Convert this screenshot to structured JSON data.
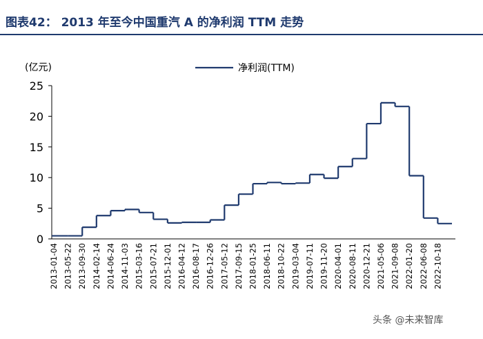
{
  "chart_data": {
    "type": "line",
    "step": true,
    "title": "图表42： 2013 年至今中国重汽 A 的净利润 TTM 走势",
    "y_unit": "(亿元)",
    "watermark": "头条 @未来智库",
    "categories": [
      "2013-01-04",
      "2013-05-22",
      "2013-09-30",
      "2014-02-14",
      "2014-06-24",
      "2014-11-03",
      "2015-03-16",
      "2015-07-21",
      "2015-12-01",
      "2016-04-12",
      "2016-08-17",
      "2016-12-26",
      "2017-05-12",
      "2017-09-15",
      "2018-01-25",
      "2018-06-11",
      "2018-10-22",
      "2019-03-04",
      "2019-07-11",
      "2019-11-20",
      "2020-04-01",
      "2020-08-11",
      "2020-12-21",
      "2021-05-06",
      "2021-09-08",
      "2022-01-20",
      "2022-06-08",
      "2022-10-18",
      null
    ],
    "series": [
      {
        "name": "净利润(TTM)",
        "color": "#1f3a6e",
        "values": [
          0.5,
          0.5,
          1.9,
          3.8,
          4.6,
          4.8,
          4.3,
          3.2,
          2.6,
          2.7,
          2.7,
          3.1,
          5.5,
          7.3,
          9.0,
          9.2,
          9.0,
          9.1,
          10.5,
          9.9,
          11.8,
          13.1,
          18.8,
          22.2,
          21.6,
          10.3,
          3.4,
          2.5,
          2.5
        ]
      }
    ],
    "ylim": [
      0,
      25
    ],
    "yticks": [
      0,
      5,
      10,
      15,
      20,
      25
    ],
    "legend": "top"
  }
}
